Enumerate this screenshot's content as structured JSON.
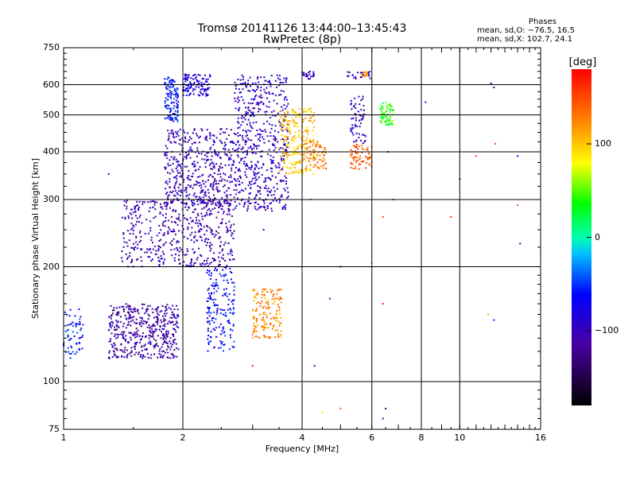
{
  "chart_data": {
    "type": "scatter",
    "title": "Tromsø 20141126 13:44:00–13:45:43",
    "subtitle": "RwPretec (8p)",
    "stats": {
      "heading": "Phases",
      "line_o": "mean, sd,O: −76.5, 16.5",
      "line_x": "mean, sd,X: 102.7, 24.1"
    },
    "xlabel": "Frequency [MHz]",
    "ylabel": "Stationary phase Virtual Height [km]",
    "x_scale": "log",
    "y_scale": "log",
    "xlim": [
      1,
      16
    ],
    "ylim": [
      75,
      750
    ],
    "x_ticks": [
      1,
      2,
      4,
      6,
      8,
      10,
      16
    ],
    "x_tick_labels": [
      "1",
      "2",
      "4",
      "6",
      "8",
      "10",
      "16"
    ],
    "x_gridlines": [
      2,
      4,
      6,
      8,
      10
    ],
    "y_ticks": [
      75,
      100,
      200,
      300,
      400,
      500,
      600,
      750
    ],
    "y_tick_labels": [
      "75",
      "100",
      "200",
      "300",
      "400",
      "500",
      "600",
      "750"
    ],
    "y_gridlines": [
      100,
      200,
      300,
      400,
      500,
      600
    ],
    "colorbar": {
      "label": "[deg]",
      "range": [
        -180,
        180
      ],
      "ticks": [
        -100,
        0,
        100
      ],
      "tick_labels": [
        "−100",
        "0",
        "100"
      ]
    },
    "clusters": [
      {
        "x": [
          1.0,
          1.12
        ],
        "y": [
          115,
          155
        ],
        "phase": -60,
        "n": 60
      },
      {
        "x": [
          1.3,
          1.95
        ],
        "y": [
          115,
          160
        ],
        "phase": -110,
        "n": 450
      },
      {
        "x": [
          1.4,
          2.7
        ],
        "y": [
          200,
          300
        ],
        "phase": -105,
        "n": 500
      },
      {
        "x": [
          1.8,
          2.7
        ],
        "y": [
          290,
          460
        ],
        "phase": -100,
        "n": 450
      },
      {
        "x": [
          1.8,
          1.95
        ],
        "y": [
          480,
          630
        ],
        "phase": -60,
        "n": 120
      },
      {
        "x": [
          2.0,
          2.35
        ],
        "y": [
          560,
          640
        ],
        "phase": -85,
        "n": 110
      },
      {
        "x": [
          2.3,
          2.7
        ],
        "y": [
          120,
          200
        ],
        "phase": -65,
        "n": 180
      },
      {
        "x": [
          2.7,
          3.7
        ],
        "y": [
          280,
          640
        ],
        "phase": -95,
        "n": 550
      },
      {
        "x": [
          3.5,
          4.3
        ],
        "y": [
          350,
          520
        ],
        "phase": 100,
        "n": 220
      },
      {
        "x": [
          4.0,
          4.6
        ],
        "y": [
          360,
          430
        ],
        "phase": 130,
        "n": 80
      },
      {
        "x": [
          3.0,
          3.55
        ],
        "y": [
          130,
          175
        ],
        "phase": 125,
        "n": 160
      },
      {
        "x": [
          5.3,
          6.0
        ],
        "y": [
          360,
          420
        ],
        "phase": 140,
        "n": 70
      },
      {
        "x": [
          5.3,
          5.8
        ],
        "y": [
          420,
          560
        ],
        "phase": -95,
        "n": 60
      },
      {
        "x": [
          6.3,
          6.8
        ],
        "y": [
          470,
          540
        ],
        "phase": 40,
        "n": 70
      },
      {
        "x": [
          5.6,
          5.9
        ],
        "y": [
          630,
          650
        ],
        "phase": 110,
        "n": 15
      },
      {
        "x": [
          4.0,
          4.3
        ],
        "y": [
          620,
          650
        ],
        "phase": -100,
        "n": 25
      },
      {
        "x": [
          5.2,
          6.0
        ],
        "y": [
          620,
          650
        ],
        "phase": -100,
        "n": 20
      }
    ],
    "scatter_points": [
      {
        "x": 6.6,
        "y": 400,
        "phase": -140
      },
      {
        "x": 6.8,
        "y": 300,
        "phase": 170
      },
      {
        "x": 6.4,
        "y": 270,
        "phase": 150
      },
      {
        "x": 6.0,
        "y": 205,
        "phase": 130
      },
      {
        "x": 6.4,
        "y": 160,
        "phase": 170
      },
      {
        "x": 6.4,
        "y": 80,
        "phase": -110
      },
      {
        "x": 6.5,
        "y": 85,
        "phase": -130
      },
      {
        "x": 5.0,
        "y": 85,
        "phase": 140
      },
      {
        "x": 4.5,
        "y": 83,
        "phase": 90
      },
      {
        "x": 5.0,
        "y": 200,
        "phase": -95
      },
      {
        "x": 4.7,
        "y": 165,
        "phase": -100
      },
      {
        "x": 4.2,
        "y": 300,
        "phase": 140
      },
      {
        "x": 3.2,
        "y": 250,
        "phase": -110
      },
      {
        "x": 3.0,
        "y": 110,
        "phase": 175
      },
      {
        "x": 10.0,
        "y": 340,
        "phase": -90
      },
      {
        "x": 14.0,
        "y": 390,
        "phase": -60
      },
      {
        "x": 14.0,
        "y": 290,
        "phase": 150
      },
      {
        "x": 14.2,
        "y": 230,
        "phase": -110
      },
      {
        "x": 12.0,
        "y": 605,
        "phase": -130
      },
      {
        "x": 12.2,
        "y": 590,
        "phase": -130
      },
      {
        "x": 12.3,
        "y": 420,
        "phase": 150
      },
      {
        "x": 11.0,
        "y": 390,
        "phase": 160
      },
      {
        "x": 9.5,
        "y": 270,
        "phase": 160
      },
      {
        "x": 8.2,
        "y": 540,
        "phase": -100
      },
      {
        "x": 1.3,
        "y": 350,
        "phase": -110
      },
      {
        "x": 4.3,
        "y": 110,
        "phase": -90
      },
      {
        "x": 11.8,
        "y": 150,
        "phase": 110
      },
      {
        "x": 12.2,
        "y": 145,
        "phase": -50
      }
    ]
  }
}
